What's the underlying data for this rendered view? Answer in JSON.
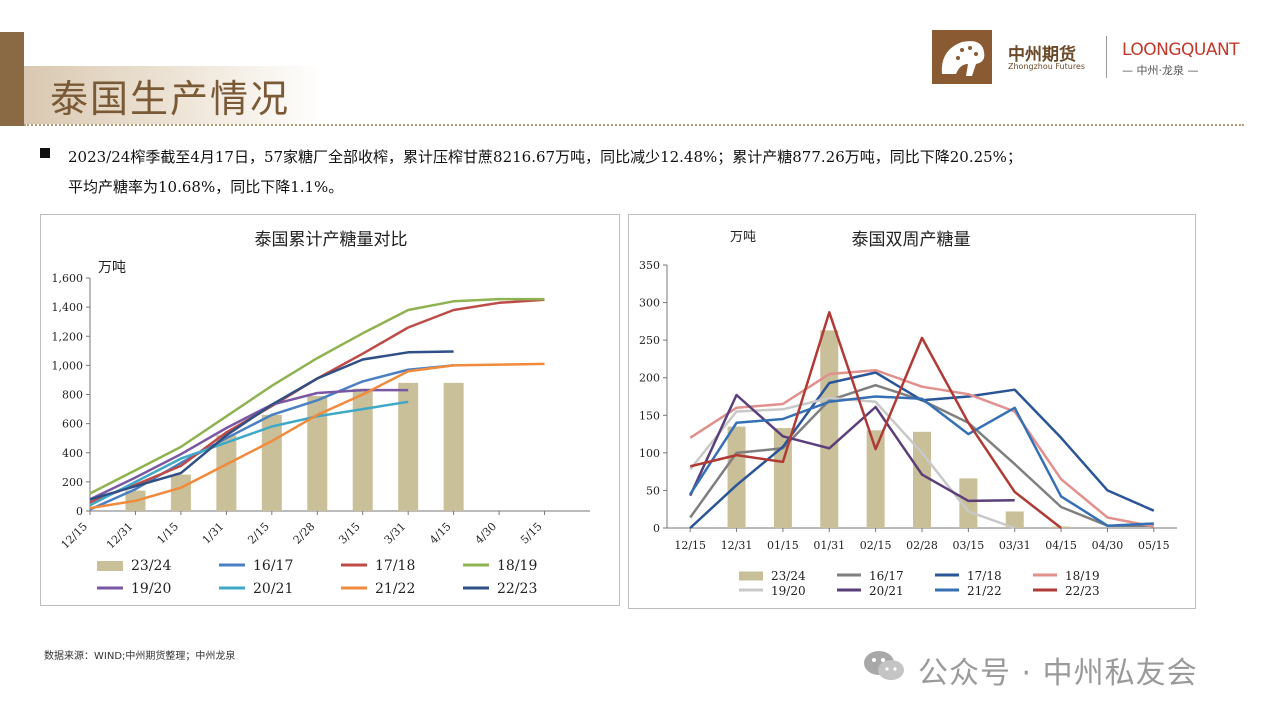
{
  "header": {
    "title": "泰国生产情况",
    "brand_cn": "中州期货",
    "brand_en": "Zhongzhou Futures",
    "lq_brand": "LOONGQUANT",
    "lq_sub": "— 中州·龙泉 —"
  },
  "summary": {
    "line1": "2023/24榨季截至4月17日，57家糖厂全部收榨，累计压榨甘蔗8216.67万吨，同比减少12.48%；累计产糖877.26万吨，同比下降20.25%；",
    "line2": "平均产糖率为10.68%，同比下降1.1%。"
  },
  "footer": {
    "source": "数据来源：WIND;中州期货整理；中州龙泉",
    "watermark": "公众号 · 中州私友会"
  },
  "chart_data": [
    {
      "type": "bar+line",
      "title": "泰国累计产糖量对比",
      "ylabel": "万吨",
      "ylim": [
        0,
        1600
      ],
      "yticks": [
        "0",
        "200",
        "400",
        "600",
        "800",
        "1,000",
        "1,200",
        "1,400",
        "1,600"
      ],
      "categories": [
        "12/15",
        "12/31",
        "1/15",
        "1/31",
        "2/15",
        "2/28",
        "3/15",
        "3/31",
        "4/15",
        "4/30",
        "5/15"
      ],
      "bar_series": {
        "name": "23/24",
        "color": "#c9bf98",
        "values": [
          null,
          140,
          250,
          520,
          660,
          790,
          840,
          880,
          880,
          null,
          null
        ]
      },
      "series": [
        {
          "name": "16/17",
          "color": "#4a7fc1",
          "values": [
            10,
            150,
            330,
            500,
            660,
            760,
            890,
            970,
            1000,
            null,
            null
          ]
        },
        {
          "name": "17/18",
          "color": "#be4b48",
          "values": [
            60,
            180,
            310,
            540,
            720,
            910,
            1080,
            1260,
            1380,
            1430,
            1450
          ]
        },
        {
          "name": "18/19",
          "color": "#8fb352",
          "values": [
            120,
            280,
            440,
            650,
            860,
            1050,
            1220,
            1380,
            1440,
            1455,
            1455
          ]
        },
        {
          "name": "19/20",
          "color": "#7a57a3",
          "values": [
            80,
            230,
            390,
            570,
            730,
            810,
            830,
            830,
            null,
            null,
            null
          ]
        },
        {
          "name": "20/21",
          "color": "#3fa8c6",
          "values": [
            40,
            200,
            360,
            470,
            580,
            650,
            700,
            750,
            null,
            null,
            null
          ]
        },
        {
          "name": "21/22",
          "color": "#f08a3c",
          "values": [
            20,
            70,
            160,
            320,
            480,
            660,
            800,
            960,
            1000,
            1005,
            1010
          ]
        },
        {
          "name": "22/23",
          "color": "#2f4f85",
          "values": [
            80,
            170,
            260,
            520,
            730,
            910,
            1040,
            1090,
            1095,
            null,
            null
          ]
        }
      ]
    },
    {
      "type": "bar+line",
      "title": "泰国双周产糖量",
      "ylabel": "万吨",
      "ylim": [
        0,
        350
      ],
      "yticks": [
        "0",
        "50",
        "100",
        "150",
        "200",
        "250",
        "300",
        "350"
      ],
      "categories": [
        "12/15",
        "12/31",
        "01/15",
        "01/31",
        "02/15",
        "02/28",
        "03/15",
        "03/31",
        "04/15",
        "04/30",
        "05/15"
      ],
      "bar_series": {
        "name": "23/24",
        "color": "#c9bf98",
        "values": [
          null,
          135,
          133,
          263,
          130,
          128,
          66,
          22,
          2,
          null,
          null
        ]
      },
      "series": [
        {
          "name": "16/17",
          "color": "#7f7f7f",
          "values": [
            14,
            100,
            106,
            170,
            190,
            170,
            140,
            85,
            28,
            3,
            3
          ]
        },
        {
          "name": "17/18",
          "color": "#2a5597",
          "values": [
            0,
            57,
            108,
            193,
            207,
            170,
            175,
            184,
            120,
            50,
            23
          ]
        },
        {
          "name": "18/19",
          "color": "#e0908d",
          "values": [
            120,
            160,
            165,
            205,
            210,
            188,
            178,
            155,
            65,
            14,
            2
          ]
        },
        {
          "name": "19/20",
          "color": "#c8c8c8",
          "values": [
            78,
            155,
            158,
            173,
            168,
            100,
            22,
            0,
            null,
            null,
            null
          ]
        },
        {
          "name": "20/21",
          "color": "#5a3f7a",
          "values": [
            43,
            177,
            122,
            106,
            161,
            71,
            36,
            37,
            null,
            null,
            null
          ]
        },
        {
          "name": "21/22",
          "color": "#3570b5",
          "values": [
            45,
            140,
            145,
            168,
            175,
            172,
            125,
            160,
            42,
            3,
            6
          ]
        },
        {
          "name": "22/23",
          "color": "#b03a35",
          "values": [
            82,
            97,
            88,
            287,
            105,
            253,
            140,
            48,
            0,
            null,
            null
          ]
        }
      ]
    }
  ]
}
